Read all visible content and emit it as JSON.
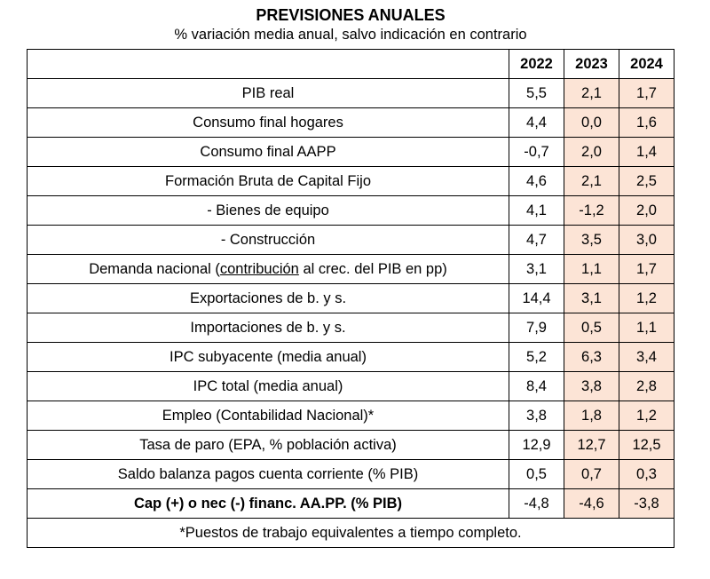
{
  "title": "PREVISIONES ANUALES",
  "subtitle": "% variación media anual, salvo indicación en contrario",
  "years": [
    "2022",
    "2023",
    "2024"
  ],
  "rows": [
    {
      "label": "PIB real",
      "values": [
        "5,5",
        "2,1",
        "1,7"
      ]
    },
    {
      "label": "Consumo final hogares",
      "values": [
        "4,4",
        "0,0",
        "1,6"
      ]
    },
    {
      "label": "Consumo final AAPP",
      "values": [
        "-0,7",
        "2,0",
        "1,4"
      ]
    },
    {
      "label": "Formación Bruta de Capital Fijo",
      "values": [
        "4,6",
        "2,1",
        "2,5"
      ]
    },
    {
      "label": "- Bienes de equipo",
      "values": [
        "4,1",
        "-1,2",
        "2,0"
      ]
    },
    {
      "label": "- Construcción",
      "values": [
        "4,7",
        "3,5",
        "3,0"
      ]
    },
    {
      "label_parts": [
        "Demanda nacional (",
        "contribución",
        " al crec. del PIB en pp)"
      ],
      "values": [
        "3,1",
        "1,1",
        "1,7"
      ]
    },
    {
      "label": "Exportaciones de b. y s.",
      "values": [
        "14,4",
        "3,1",
        "1,2"
      ]
    },
    {
      "label": "Importaciones de b. y s.",
      "values": [
        "7,9",
        "0,5",
        "1,1"
      ]
    },
    {
      "label": "IPC subyacente (media anual)",
      "values": [
        "5,2",
        "6,3",
        "3,4"
      ]
    },
    {
      "label": "IPC total (media anual)",
      "values": [
        "8,4",
        "3,8",
        "2,8"
      ]
    },
    {
      "label": "Empleo (Contabilidad Nacional)*",
      "values": [
        "3,8",
        "1,8",
        "1,2"
      ]
    },
    {
      "label": "Tasa de paro (EPA, % población activa)",
      "values": [
        "12,9",
        "12,7",
        "12,5"
      ]
    },
    {
      "label": "Saldo balanza pagos cuenta corriente (% PIB)",
      "values": [
        "0,5",
        "0,7",
        "0,3"
      ]
    },
    {
      "label": "Cap (+) o nec (-) financ. AA.PP. (% PIB)",
      "values": [
        "-4,8",
        "-4,6",
        "-3,8"
      ]
    }
  ],
  "footnote": "*Puestos de trabajo equivalentes a tiempo completo.",
  "colors": {
    "forecast_shade": "#fce4d6",
    "border": "#000000"
  }
}
